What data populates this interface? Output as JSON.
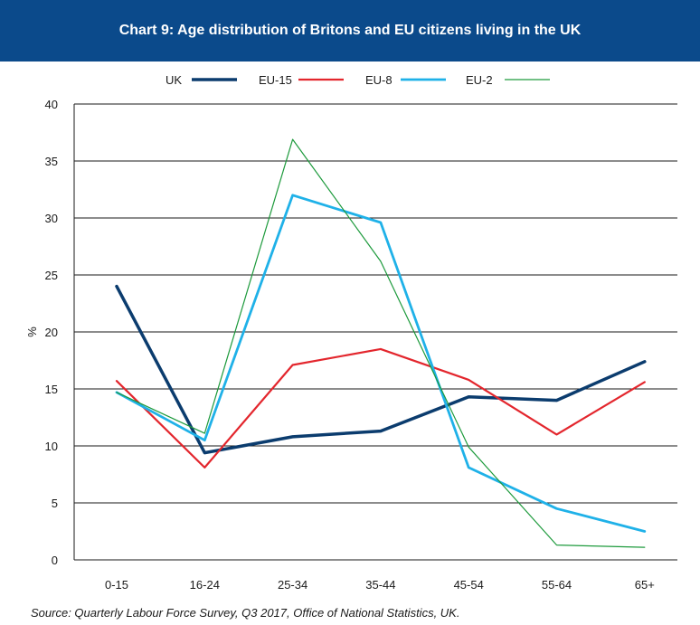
{
  "chart_data": {
    "type": "line",
    "title": "Chart 9: Age distribution of Britons and EU citizens living in the UK",
    "xlabel": "",
    "ylabel": "%",
    "categories": [
      "0-15",
      "16-24",
      "25-34",
      "35-44",
      "45-54",
      "55-64",
      "65+"
    ],
    "ylim": [
      0,
      40
    ],
    "yticks": [
      0,
      5,
      10,
      15,
      20,
      25,
      30,
      35,
      40
    ],
    "grid": true,
    "legend_position": "top",
    "series": [
      {
        "name": "UK",
        "color": "#0b3c6e",
        "values": [
          24.0,
          9.4,
          10.8,
          11.3,
          14.3,
          14.0,
          17.4
        ]
      },
      {
        "name": "EU-15",
        "color": "#e3262d",
        "values": [
          15.7,
          8.1,
          17.1,
          18.5,
          15.8,
          11.0,
          15.6
        ]
      },
      {
        "name": "EU-8",
        "color": "#1fb1e8",
        "values": [
          14.7,
          10.5,
          32.0,
          29.6,
          8.1,
          4.5,
          2.5
        ]
      },
      {
        "name": "EU-2",
        "color": "#1d9a3c",
        "values": [
          14.7,
          11.1,
          36.9,
          26.2,
          9.9,
          1.3,
          1.1
        ]
      }
    ],
    "source": "Source: Quarterly Labour Force Survey, Q3 2017, Office of National Statistics, UK."
  }
}
